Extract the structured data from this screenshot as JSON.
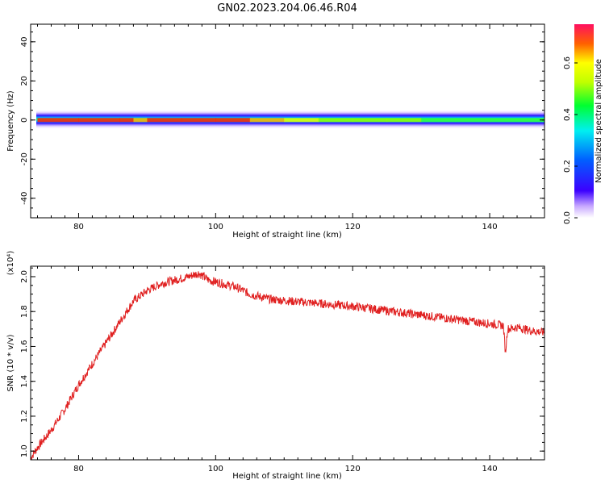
{
  "title": "GN02.2023.204.06.46.R04",
  "chart_data": [
    {
      "type": "heatmap",
      "xlabel": "Height of straight line (km)",
      "ylabel": "Frequency (Hz)",
      "xlim": [
        73,
        148
      ],
      "ylim": [
        -50,
        49
      ],
      "xticks": [
        80,
        100,
        120,
        140
      ],
      "yticks": [
        -40,
        -20,
        0,
        20,
        40
      ],
      "xtick_labels": [
        "80",
        "100",
        "120",
        "140"
      ],
      "ytick_labels": [
        "-40",
        "-20",
        "0",
        "20",
        "40"
      ],
      "colorbar": {
        "label": "Normalized spectral amplitude",
        "range": [
          0,
          0.75
        ],
        "ticks": [
          0.0,
          0.2,
          0.4,
          0.6
        ],
        "tick_labels": [
          "0.0",
          "0.2",
          "0.4",
          "0.6"
        ]
      },
      "band": {
        "center_hz": 0,
        "x": [
          74,
          80,
          86,
          88,
          90,
          95,
          100,
          105,
          110,
          115,
          120,
          125,
          130,
          135,
          140,
          145,
          148
        ],
        "peak_amplitude": [
          0.72,
          0.7,
          0.68,
          0.6,
          0.7,
          0.68,
          0.66,
          0.6,
          0.55,
          0.5,
          0.48,
          0.45,
          0.42,
          0.4,
          0.4,
          0.42,
          0.44
        ]
      }
    },
    {
      "type": "line",
      "xlabel": "Height of straight line (km)",
      "ylabel": "SNR (10 * v/v)",
      "yscale_label": "(x10⁴)",
      "xlim": [
        73,
        148
      ],
      "ylim": [
        0.95,
        2.06
      ],
      "xticks": [
        80,
        100,
        120,
        140
      ],
      "yticks": [
        1.0,
        1.2,
        1.4,
        1.6,
        1.8,
        2.0
      ],
      "xtick_labels": [
        "80",
        "100",
        "120",
        "140"
      ],
      "ytick_labels": [
        "1.0",
        "1.2",
        "1.4",
        "1.6",
        "1.8",
        "2.0"
      ],
      "series": [
        {
          "color": "#e02020",
          "x": [
            73,
            74,
            76,
            78,
            80,
            82,
            84,
            86,
            88,
            90,
            92,
            94,
            96,
            97.5,
            99,
            101,
            103,
            105,
            108,
            111,
            114,
            117,
            120,
            124,
            128,
            132,
            136,
            140,
            142,
            142.3,
            142.6,
            144,
            146,
            148
          ],
          "y": [
            0.96,
            1.02,
            1.12,
            1.24,
            1.38,
            1.5,
            1.62,
            1.74,
            1.86,
            1.92,
            1.96,
            1.98,
            2.0,
            2.02,
            1.98,
            1.96,
            1.94,
            1.9,
            1.87,
            1.86,
            1.85,
            1.84,
            1.83,
            1.81,
            1.79,
            1.77,
            1.75,
            1.73,
            1.72,
            1.56,
            1.7,
            1.71,
            1.69,
            1.68
          ]
        }
      ]
    }
  ]
}
